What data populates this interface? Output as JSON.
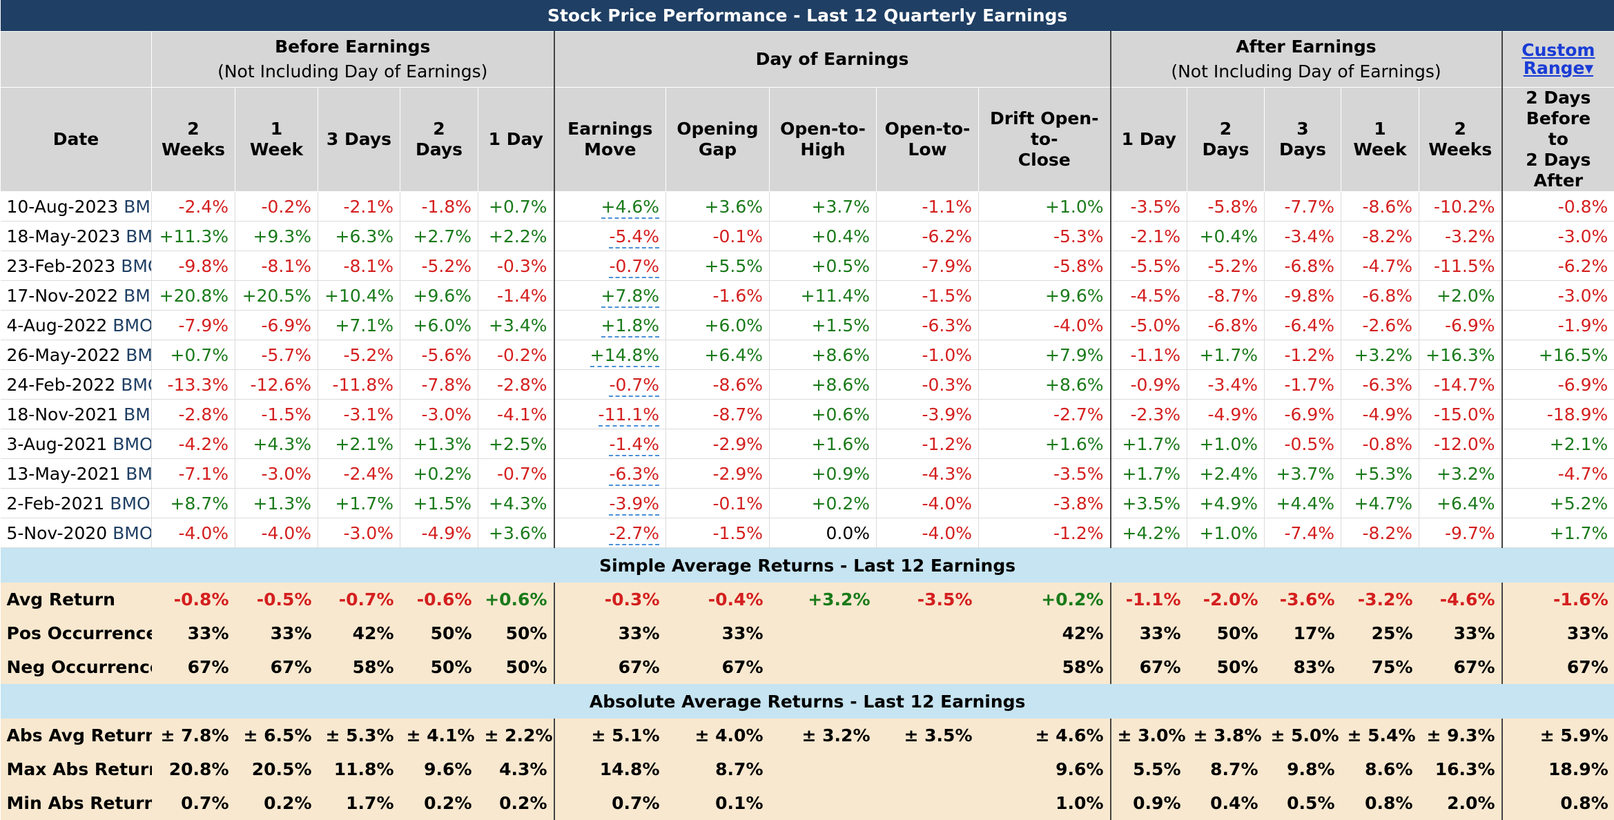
{
  "title": "Stock Price Performance - Last 12 Quarterly Earnings",
  "groups": {
    "before": {
      "title": "Before Earnings",
      "subtitle": "(Not Including Day of Earnings)"
    },
    "day": {
      "title": "Day of Earnings"
    },
    "after": {
      "title": "After Earnings",
      "subtitle": "(Not Including Day of Earnings)"
    },
    "custom": {
      "line1": "Custom",
      "line2": "Range▾"
    }
  },
  "columns": {
    "date": "Date",
    "b2w": [
      "2",
      "Weeks"
    ],
    "b1w": "1 Week",
    "b3d": "3 Days",
    "b2d": "2 Days",
    "b1d": "1 Day",
    "move": [
      "Earnings",
      "Move"
    ],
    "gap": [
      "Opening",
      "Gap"
    ],
    "oth": [
      "Open-to-",
      "High"
    ],
    "otl": [
      "Open-to-",
      "Low"
    ],
    "drift": [
      "Drift Open-to-",
      "Close"
    ],
    "a1d": "1 Day",
    "a2d": "2 Days",
    "a3d": "3 Days",
    "a1w": "1 Week",
    "a2w": [
      "2",
      "Weeks"
    ],
    "custom": [
      "2 Days",
      "Before",
      "to",
      "2 Days After"
    ]
  },
  "rows": [
    {
      "date": "10-Aug-2023",
      "ticker": "BMO",
      "v": [
        "-2.4%",
        "-0.2%",
        "-2.1%",
        "-1.8%",
        "+0.7%",
        "+4.6%",
        "+3.6%",
        "+3.7%",
        "-1.1%",
        "+1.0%",
        "-3.5%",
        "-5.8%",
        "-7.7%",
        "-8.6%",
        "-10.2%",
        "-0.8%"
      ]
    },
    {
      "date": "18-May-2023",
      "ticker": "BMO",
      "v": [
        "+11.3%",
        "+9.3%",
        "+6.3%",
        "+2.7%",
        "+2.2%",
        "-5.4%",
        "-0.1%",
        "+0.4%",
        "-6.2%",
        "-5.3%",
        "-2.1%",
        "+0.4%",
        "-3.4%",
        "-8.2%",
        "-3.2%",
        "-3.0%"
      ]
    },
    {
      "date": "23-Feb-2023",
      "ticker": "BMO",
      "v": [
        "-9.8%",
        "-8.1%",
        "-8.1%",
        "-5.2%",
        "-0.3%",
        "-0.7%",
        "+5.5%",
        "+0.5%",
        "-7.9%",
        "-5.8%",
        "-5.5%",
        "-5.2%",
        "-6.8%",
        "-4.7%",
        "-11.5%",
        "-6.2%"
      ]
    },
    {
      "date": "17-Nov-2022",
      "ticker": "BMO",
      "v": [
        "+20.8%",
        "+20.5%",
        "+10.4%",
        "+9.6%",
        "-1.4%",
        "+7.8%",
        "-1.6%",
        "+11.4%",
        "-1.5%",
        "+9.6%",
        "-4.5%",
        "-8.7%",
        "-9.8%",
        "-6.8%",
        "+2.0%",
        "-3.0%"
      ]
    },
    {
      "date": "4-Aug-2022",
      "ticker": "BMO",
      "v": [
        "-7.9%",
        "-6.9%",
        "+7.1%",
        "+6.0%",
        "+3.4%",
        "+1.8%",
        "+6.0%",
        "+1.5%",
        "-6.3%",
        "-4.0%",
        "-5.0%",
        "-6.8%",
        "-6.4%",
        "-2.6%",
        "-6.9%",
        "-1.9%"
      ]
    },
    {
      "date": "26-May-2022",
      "ticker": "BMO",
      "v": [
        "+0.7%",
        "-5.7%",
        "-5.2%",
        "-5.6%",
        "-0.2%",
        "+14.8%",
        "+6.4%",
        "+8.6%",
        "-1.0%",
        "+7.9%",
        "-1.1%",
        "+1.7%",
        "-1.2%",
        "+3.2%",
        "+16.3%",
        "+16.5%"
      ]
    },
    {
      "date": "24-Feb-2022",
      "ticker": "BMO",
      "v": [
        "-13.3%",
        "-12.6%",
        "-11.8%",
        "-7.8%",
        "-2.8%",
        "-0.7%",
        "-8.6%",
        "+8.6%",
        "-0.3%",
        "+8.6%",
        "-0.9%",
        "-3.4%",
        "-1.7%",
        "-6.3%",
        "-14.7%",
        "-6.9%"
      ]
    },
    {
      "date": "18-Nov-2021",
      "ticker": "BMO",
      "v": [
        "-2.8%",
        "-1.5%",
        "-3.1%",
        "-3.0%",
        "-4.1%",
        "-11.1%",
        "-8.7%",
        "+0.6%",
        "-3.9%",
        "-2.7%",
        "-2.3%",
        "-4.9%",
        "-6.9%",
        "-4.9%",
        "-15.0%",
        "-18.9%"
      ]
    },
    {
      "date": "3-Aug-2021",
      "ticker": "BMO",
      "v": [
        "-4.2%",
        "+4.3%",
        "+2.1%",
        "+1.3%",
        "+2.5%",
        "-1.4%",
        "-2.9%",
        "+1.6%",
        "-1.2%",
        "+1.6%",
        "+1.7%",
        "+1.0%",
        "-0.5%",
        "-0.8%",
        "-12.0%",
        "+2.1%"
      ]
    },
    {
      "date": "13-May-2021",
      "ticker": "BMO",
      "v": [
        "-7.1%",
        "-3.0%",
        "-2.4%",
        "+0.2%",
        "-0.7%",
        "-6.3%",
        "-2.9%",
        "+0.9%",
        "-4.3%",
        "-3.5%",
        "+1.7%",
        "+2.4%",
        "+3.7%",
        "+5.3%",
        "+3.2%",
        "-4.7%"
      ]
    },
    {
      "date": "2-Feb-2021",
      "ticker": "BMO",
      "v": [
        "+8.7%",
        "+1.3%",
        "+1.7%",
        "+1.5%",
        "+4.3%",
        "-3.9%",
        "-0.1%",
        "+0.2%",
        "-4.0%",
        "-3.8%",
        "+3.5%",
        "+4.9%",
        "+4.4%",
        "+4.7%",
        "+6.4%",
        "+5.2%"
      ]
    },
    {
      "date": "5-Nov-2020",
      "ticker": "BMO",
      "v": [
        "-4.0%",
        "-4.0%",
        "-3.0%",
        "-4.9%",
        "+3.6%",
        "-2.7%",
        "-1.5%",
        "0.0%",
        "-4.0%",
        "-1.2%",
        "+4.2%",
        "+1.0%",
        "-7.4%",
        "-8.2%",
        "-9.7%",
        "+1.7%"
      ]
    }
  ],
  "simple_section": "Simple Average Returns - Last 12 Earnings",
  "simple": [
    {
      "label": "Avg Return",
      "colored": true,
      "v": [
        "-0.8%",
        "-0.5%",
        "-0.7%",
        "-0.6%",
        "+0.6%",
        "-0.3%",
        "-0.4%",
        "+3.2%",
        "-3.5%",
        "+0.2%",
        "-1.1%",
        "-2.0%",
        "-3.6%",
        "-3.2%",
        "-4.6%",
        "-1.6%"
      ]
    },
    {
      "label": "Pos Occurrences",
      "colored": false,
      "v": [
        "33%",
        "33%",
        "42%",
        "50%",
        "50%",
        "33%",
        "33%",
        "",
        "",
        "42%",
        "33%",
        "50%",
        "17%",
        "25%",
        "33%",
        "33%"
      ]
    },
    {
      "label": "Neg Occurrences",
      "colored": false,
      "v": [
        "67%",
        "67%",
        "58%",
        "50%",
        "50%",
        "67%",
        "67%",
        "",
        "",
        "58%",
        "67%",
        "50%",
        "83%",
        "75%",
        "67%",
        "67%"
      ]
    }
  ],
  "abs_section": "Absolute Average Returns - Last 12 Earnings",
  "abs": [
    {
      "label": "Abs Avg Return",
      "colored": false,
      "v": [
        "± 7.8%",
        "± 6.5%",
        "± 5.3%",
        "± 4.1%",
        "± 2.2%",
        "± 5.1%",
        "± 4.0%",
        "± 3.2%",
        "± 3.5%",
        "± 4.6%",
        "± 3.0%",
        "± 3.8%",
        "± 5.0%",
        "± 5.4%",
        "± 9.3%",
        "± 5.9%"
      ]
    },
    {
      "label": "Max Abs Return",
      "colored": false,
      "v": [
        "20.8%",
        "20.5%",
        "11.8%",
        "9.6%",
        "4.3%",
        "14.8%",
        "8.7%",
        "",
        "",
        "9.6%",
        "5.5%",
        "8.7%",
        "9.8%",
        "8.6%",
        "16.3%",
        "18.9%"
      ]
    },
    {
      "label": "Min Abs Return",
      "colored": false,
      "v": [
        "0.7%",
        "0.2%",
        "1.7%",
        "0.2%",
        "0.2%",
        "0.7%",
        "0.1%",
        "",
        "",
        "1.0%",
        "0.9%",
        "0.4%",
        "0.5%",
        "0.8%",
        "2.0%",
        "0.8%"
      ]
    }
  ],
  "colors": {
    "positive": "#1a7a1a",
    "negative": "#d41f1f",
    "header": "#1f3f64",
    "section": "#c6e4f1",
    "summary": "#f8e8cf"
  }
}
